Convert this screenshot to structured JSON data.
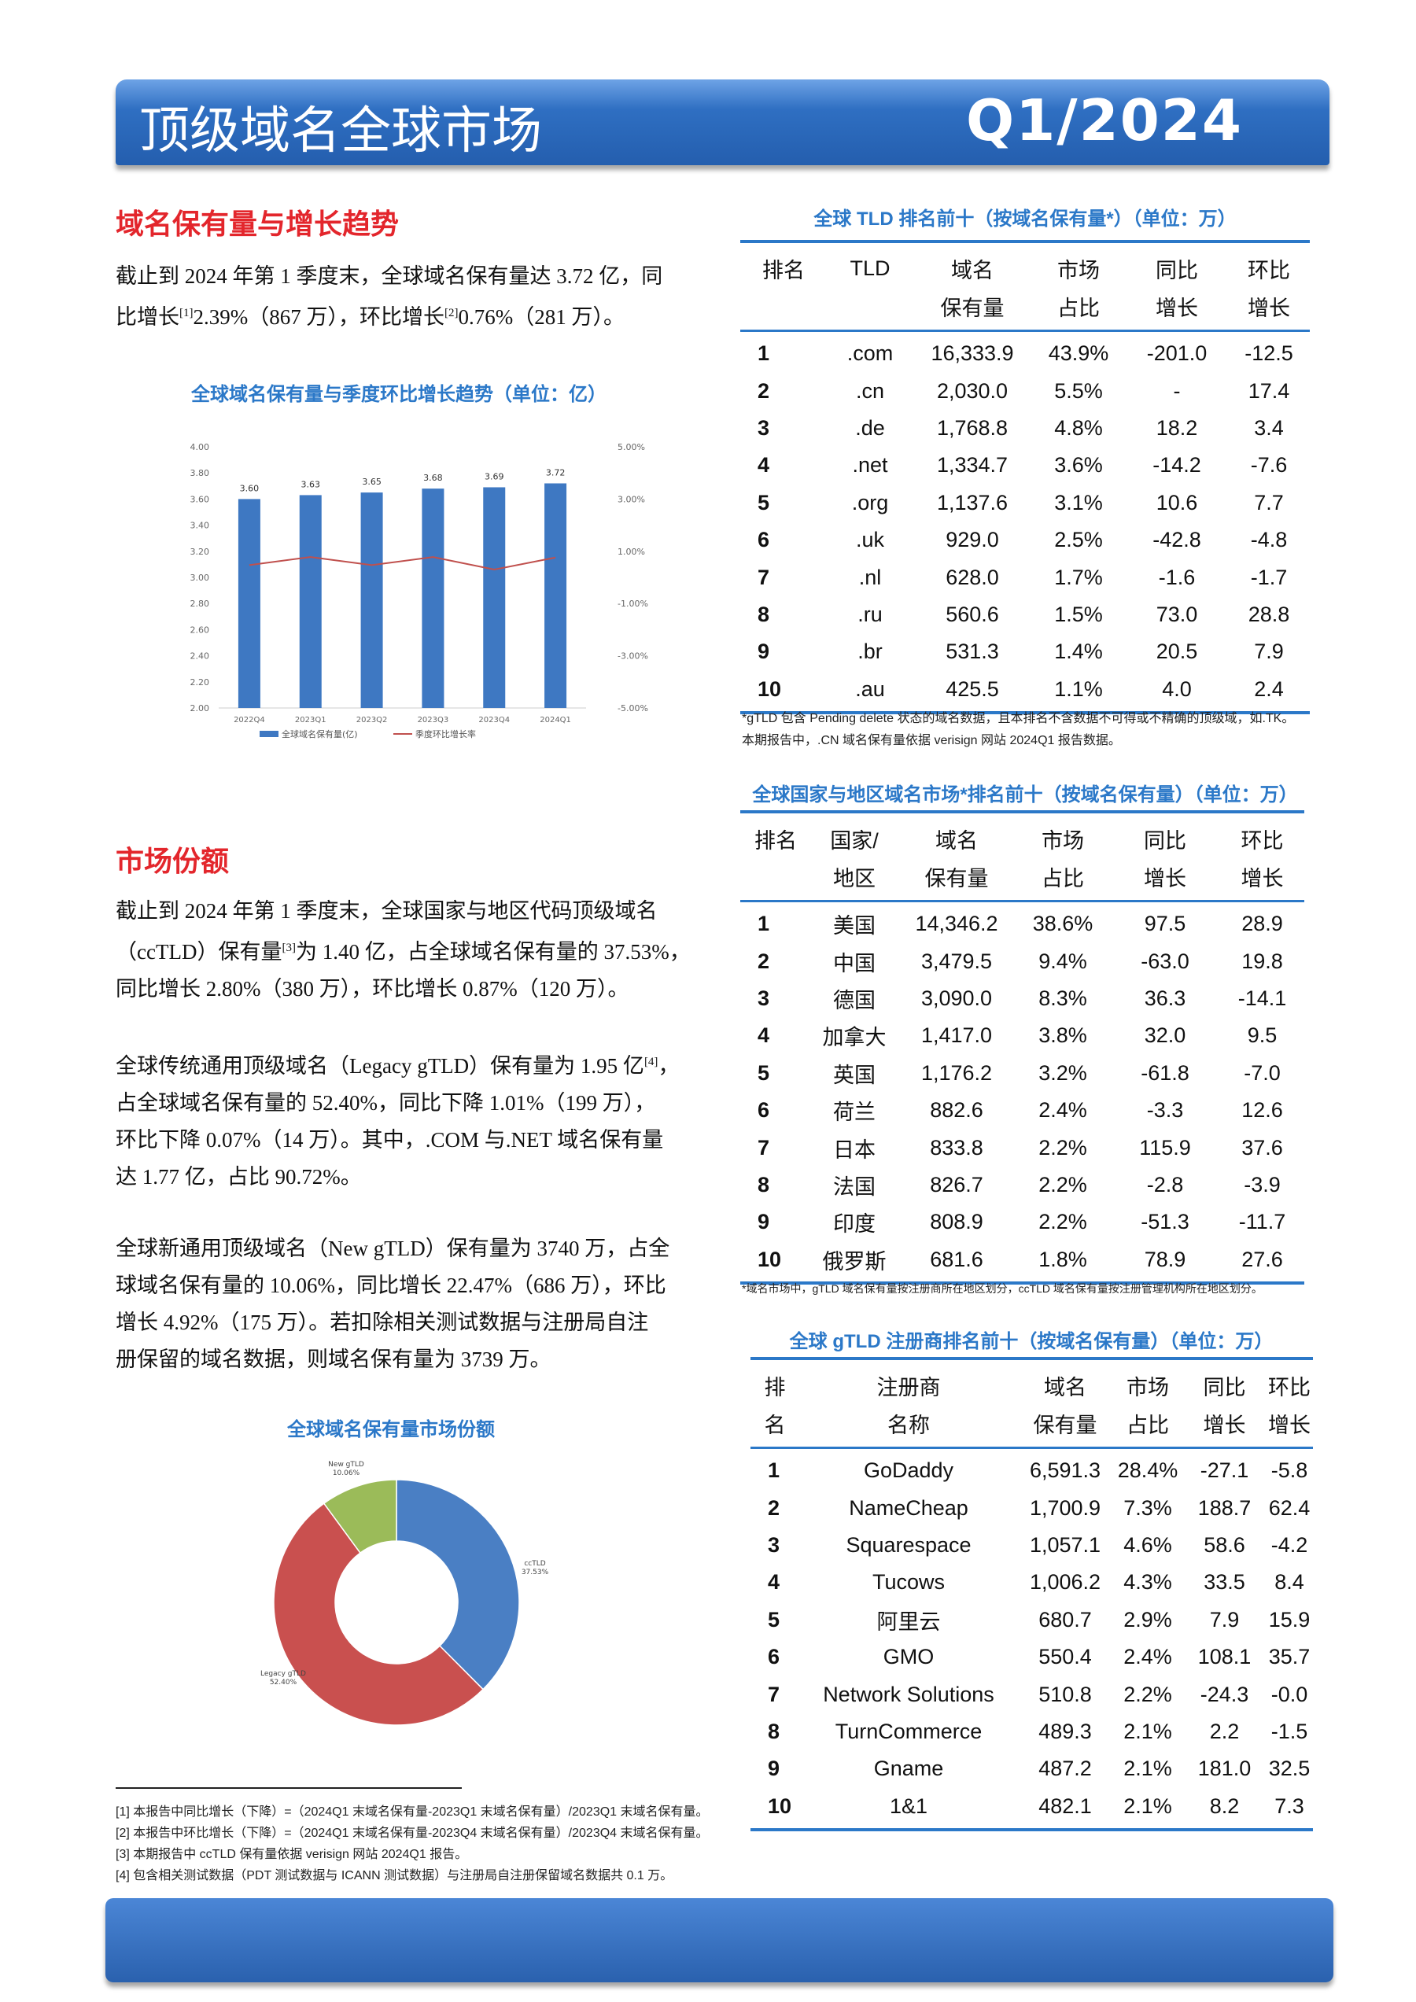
{
  "header": {
    "title": "顶级域名全球市场",
    "period": "Q1/2024"
  },
  "trend": {
    "title": "域名保有量与增长趋势",
    "paragraph": [
      "截止到 2024 年第 1 季度末，全球域名保有量达 3.72 亿，同",
      "比增长",
      "[1]",
      "2.39%（867 万），环比增长",
      "[2]",
      "0.76%（281 万）。"
    ]
  },
  "chart_data": [
    {
      "type": "bar+line",
      "title": "全球域名保有量与季度环比增长趋势（单位：亿）",
      "categories": [
        "2022Q4",
        "2023Q1",
        "2023Q2",
        "2023Q3",
        "2023Q4",
        "2024Q1"
      ],
      "series": [
        {
          "name": "全球域名保有量(亿)",
          "type": "bar",
          "axis": "left",
          "values": [
            3.6,
            3.63,
            3.65,
            3.68,
            3.69,
            3.72
          ],
          "color": "#3e78c2"
        },
        {
          "name": "季度环比增长率",
          "type": "line",
          "axis": "right",
          "values": [
            0.47,
            0.78,
            0.47,
            0.78,
            0.3,
            0.76
          ],
          "color": "#c0504d"
        }
      ],
      "ylim": [
        2.0,
        4.0
      ],
      "yticks": [
        "2.00",
        "2.20",
        "2.40",
        "2.60",
        "2.80",
        "3.00",
        "3.20",
        "3.40",
        "3.60",
        "3.80",
        "4.00"
      ],
      "y2lim": [
        -5,
        5
      ],
      "y2ticks": [
        "-5.00%",
        "-3.00%",
        "-1.00%",
        "1.00%",
        "3.00%",
        "5.00%"
      ],
      "legend": "bottom",
      "grid": false
    },
    {
      "type": "pie",
      "title": "全球域名保有量市场份额",
      "donut": true,
      "slices": [
        {
          "label": "ccTLD",
          "value": 37.53,
          "text": "37.53%",
          "color": "#4a7fc4"
        },
        {
          "label": "Legacy gTLD",
          "value": 52.4,
          "text": "52.40%",
          "color": "#c9504f"
        },
        {
          "label": "New gTLD",
          "value": 10.06,
          "text": "10.06%",
          "color": "#9bbb59"
        }
      ]
    }
  ],
  "share": {
    "title": "市场份额",
    "p1": [
      "截止到 2024 年第 1 季度末，全球国家与地区代码顶级域名",
      "（ccTLD）保有量",
      "[3]",
      "为 1.40 亿，占全球域名保有量的 37.53%，",
      "同比增长 2.80%（380 万），环比增长 0.87%（120 万）。"
    ],
    "p2": [
      "全球传统通用顶级域名（Legacy gTLD）保有量为 1.95 亿",
      "[4]",
      "，",
      "占全球域名保有量的 52.40%，同比下降 1.01%（199 万），",
      "环比下降 0.07%（14 万）。其中，.COM 与.NET 域名保有量",
      "达 1.77 亿，占比 90.72%。"
    ],
    "p3": [
      "全球新通用顶级域名（New gTLD）保有量为 3740 万，占全",
      "球域名保有量的 10.06%，同比增长 22.47%（686 万），环比",
      "增长 4.92%（175 万）。若扣除相关测试数据与注册局自注",
      "册保留的域名数据，则域名保有量为 3739 万。"
    ]
  },
  "footnotes": [
    "[1]  本报告中同比增长（下降）=（2024Q1 末域名保有量-2023Q1 末域名保有量）/2023Q1 末域名保有量。",
    "[2]  本报告中环比增长（下降）=（2024Q1 末域名保有量-2023Q4 末域名保有量）/2023Q4 末域名保有量。",
    "[3]  本期报告中 ccTLD 保有量依据 verisign 网站 2024Q1 报告。",
    "[4]  包含相关测试数据（PDT 测试数据与 ICANN 测试数据）与注册局自注册保留域名数据共 0.1 万。"
  ],
  "tld_table": {
    "title": "全球 TLD 排名前十（按域名保有量*）（单位：万）",
    "headers": [
      [
        "排名",
        ""
      ],
      [
        "TLD",
        ""
      ],
      [
        "域名",
        "保有量"
      ],
      [
        "市场",
        "占比"
      ],
      [
        "同比",
        "增长"
      ],
      [
        "环比",
        "增长"
      ]
    ],
    "rows": [
      [
        "1",
        ".com",
        "16,333.9",
        "43.9%",
        "-201.0",
        "-12.5"
      ],
      [
        "2",
        ".cn",
        "2,030.0",
        "5.5%",
        "-",
        "17.4"
      ],
      [
        "3",
        ".de",
        "1,768.8",
        "4.8%",
        "18.2",
        "3.4"
      ],
      [
        "4",
        ".net",
        "1,334.7",
        "3.6%",
        "-14.2",
        "-7.6"
      ],
      [
        "5",
        ".org",
        "1,137.6",
        "3.1%",
        "10.6",
        "7.7"
      ],
      [
        "6",
        ".uk",
        "929.0",
        "2.5%",
        "-42.8",
        "-4.8"
      ],
      [
        "7",
        ".nl",
        "628.0",
        "1.7%",
        "-1.6",
        "-1.7"
      ],
      [
        "8",
        ".ru",
        "560.6",
        "1.5%",
        "73.0",
        "28.8"
      ],
      [
        "9",
        ".br",
        "531.3",
        "1.4%",
        "20.5",
        "7.9"
      ],
      [
        "10",
        ".au",
        "425.5",
        "1.1%",
        "4.0",
        "2.4"
      ]
    ],
    "notes": [
      "*gTLD 包含 Pending delete 状态的域名数据，且本排名不含数据不可得或不精确的顶级域，如.TK。",
      "本期报告中，.CN 域名保有量依据 verisign 网站 2024Q1 报告数据。"
    ]
  },
  "country_table": {
    "title": "全球国家与地区域名市场*排名前十（按域名保有量）（单位：万）",
    "headers": [
      [
        "排名",
        ""
      ],
      [
        "国家/",
        "地区"
      ],
      [
        "域名",
        "保有量"
      ],
      [
        "市场",
        "占比"
      ],
      [
        "同比",
        "增长"
      ],
      [
        "环比",
        "增长"
      ]
    ],
    "rows": [
      [
        "1",
        "美国",
        "14,346.2",
        "38.6%",
        "97.5",
        "28.9"
      ],
      [
        "2",
        "中国",
        "3,479.5",
        "9.4%",
        "-63.0",
        "19.8"
      ],
      [
        "3",
        "德国",
        "3,090.0",
        "8.3%",
        "36.3",
        "-14.1"
      ],
      [
        "4",
        "加拿大",
        "1,417.0",
        "3.8%",
        "32.0",
        "9.5"
      ],
      [
        "5",
        "英国",
        "1,176.2",
        "3.2%",
        "-61.8",
        "-7.0"
      ],
      [
        "6",
        "荷兰",
        "882.6",
        "2.4%",
        "-3.3",
        "12.6"
      ],
      [
        "7",
        "日本",
        "833.8",
        "2.2%",
        "115.9",
        "37.6"
      ],
      [
        "8",
        "法国",
        "826.7",
        "2.2%",
        "-2.8",
        "-3.9"
      ],
      [
        "9",
        "印度",
        "808.9",
        "2.2%",
        "-51.3",
        "-11.7"
      ],
      [
        "10",
        "俄罗斯",
        "681.6",
        "1.8%",
        "78.9",
        "27.6"
      ]
    ],
    "notes": [
      "*域名市场中，gTLD 域名保有量按注册商所在地区划分，ccTLD 域名保有量按注册管理机构所在地区划分。"
    ]
  },
  "registrar_table": {
    "title": "全球 gTLD 注册商排名前十（按域名保有量）（单位：万）",
    "headers": [
      [
        "排",
        "名"
      ],
      [
        "注册商",
        "名称"
      ],
      [
        "域名",
        "保有量"
      ],
      [
        "市场",
        "占比"
      ],
      [
        "同比",
        "增长"
      ],
      [
        "环比",
        "增长"
      ]
    ],
    "rows": [
      [
        "1",
        "GoDaddy",
        "6,591.3",
        "28.4%",
        "-27.1",
        "-5.8"
      ],
      [
        "2",
        "NameCheap",
        "1,700.9",
        "7.3%",
        "188.7",
        "62.4"
      ],
      [
        "3",
        "Squarespace",
        "1,057.1",
        "4.6%",
        "58.6",
        "-4.2"
      ],
      [
        "4",
        "Tucows",
        "1,006.2",
        "4.3%",
        "33.5",
        "8.4"
      ],
      [
        "5",
        "阿里云",
        "680.7",
        "2.9%",
        "7.9",
        "15.9"
      ],
      [
        "6",
        "GMO",
        "550.4",
        "2.4%",
        "108.1",
        "35.7"
      ],
      [
        "7",
        "Network Solutions",
        "510.8",
        "2.2%",
        "-24.3",
        "-0.0"
      ],
      [
        "8",
        "TurnCommerce",
        "489.3",
        "2.1%",
        "2.2",
        "-1.5"
      ],
      [
        "9",
        "Gname",
        "487.2",
        "2.1%",
        "181.0",
        "32.5"
      ],
      [
        "10",
        "1&1",
        "482.1",
        "2.1%",
        "8.2",
        "7.3"
      ]
    ]
  }
}
